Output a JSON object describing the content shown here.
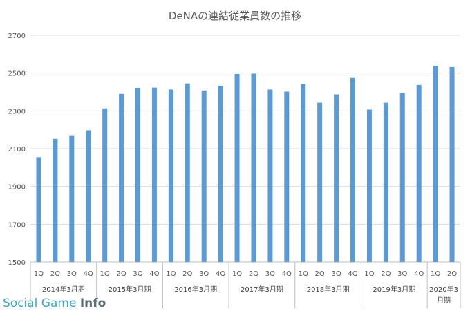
{
  "chart_data": {
    "type": "bar",
    "title": "DeNAの連結従業員数の推移",
    "xlabel": "",
    "ylabel": "",
    "ylim": [
      1500,
      2700
    ],
    "yticks": [
      1500,
      1700,
      1900,
      2100,
      2300,
      2500,
      2700
    ],
    "grid": true,
    "legend": "none",
    "bar_color": "#5b9bd5",
    "categories": [
      "1Q",
      "2Q",
      "3Q",
      "4Q",
      "1Q",
      "2Q",
      "3Q",
      "4Q",
      "1Q",
      "2Q",
      "3Q",
      "4Q",
      "1Q",
      "2Q",
      "3Q",
      "4Q",
      "1Q",
      "2Q",
      "3Q",
      "4Q",
      "1Q",
      "2Q",
      "3Q",
      "4Q",
      "1Q",
      "2Q"
    ],
    "groups": [
      {
        "label": "2014年3月期",
        "count": 4
      },
      {
        "label": "2015年3月期",
        "count": 4
      },
      {
        "label": "2016年3月期",
        "count": 4
      },
      {
        "label": "2017年3月期",
        "count": 4
      },
      {
        "label": "2018年3月期",
        "count": 4
      },
      {
        "label": "2019年3月期",
        "count": 4
      },
      {
        "label": "2020年3月期",
        "count": 2
      }
    ],
    "values": [
      2055,
      2152,
      2167,
      2197,
      2313,
      2390,
      2420,
      2423,
      2413,
      2445,
      2408,
      2433,
      2495,
      2497,
      2413,
      2402,
      2442,
      2343,
      2387,
      2474,
      2307,
      2343,
      2395,
      2437,
      2538,
      2532
    ]
  },
  "watermark": {
    "part1": "Social Game ",
    "part2": "Info"
  }
}
